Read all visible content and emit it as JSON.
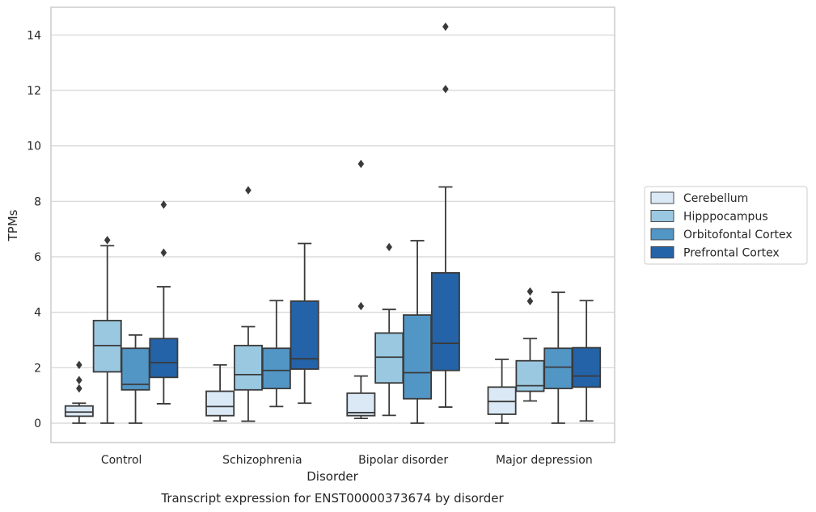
{
  "chart_data": {
    "type": "box",
    "title": "",
    "caption": "Transcript expression for ENST00000373674 by disorder",
    "xlabel": "Disorder",
    "ylabel": "TPMs",
    "categories": [
      "Control",
      "Schizophrenia",
      "Bipolar disorder",
      "Major depression"
    ],
    "yticks": [
      0,
      2,
      4,
      6,
      8,
      10,
      12,
      14
    ],
    "ylim": [
      -0.7,
      15.0
    ],
    "grid": "horizontal",
    "legend_position": "right",
    "series": [
      {
        "name": "Cerebellum",
        "color": "#dbe9f6",
        "boxes": [
          {
            "whislo": 0.0,
            "q1": 0.25,
            "med": 0.4,
            "q3": 0.62,
            "whishi": 0.72,
            "fliers": [
              1.25,
              1.55,
              2.1
            ]
          },
          {
            "whislo": 0.08,
            "q1": 0.27,
            "med": 0.6,
            "q3": 1.15,
            "whishi": 2.1,
            "fliers": []
          },
          {
            "whislo": 0.17,
            "q1": 0.27,
            "med": 0.38,
            "q3": 1.08,
            "whishi": 1.7,
            "fliers": [
              4.22,
              9.35
            ]
          },
          {
            "whislo": 0.0,
            "q1": 0.32,
            "med": 0.78,
            "q3": 1.3,
            "whishi": 2.3,
            "fliers": []
          }
        ]
      },
      {
        "name": "Hipppocampus",
        "color": "#9ac8e1",
        "boxes": [
          {
            "whislo": 0.0,
            "q1": 1.85,
            "med": 2.8,
            "q3": 3.7,
            "whishi": 6.4,
            "fliers": [
              6.6
            ]
          },
          {
            "whislo": 0.07,
            "q1": 1.2,
            "med": 1.75,
            "q3": 2.8,
            "whishi": 3.48,
            "fliers": [
              8.4
            ]
          },
          {
            "whislo": 0.28,
            "q1": 1.45,
            "med": 2.38,
            "q3": 3.25,
            "whishi": 4.1,
            "fliers": [
              6.35
            ]
          },
          {
            "whislo": 0.8,
            "q1": 1.15,
            "med": 1.35,
            "q3": 2.25,
            "whishi": 3.05,
            "fliers": [
              4.4,
              4.75
            ]
          }
        ]
      },
      {
        "name": "Orbitofontal Cortex",
        "color": "#5296c6",
        "boxes": [
          {
            "whislo": 0.0,
            "q1": 1.2,
            "med": 1.4,
            "q3": 2.7,
            "whishi": 3.18,
            "fliers": []
          },
          {
            "whislo": 0.6,
            "q1": 1.25,
            "med": 1.9,
            "q3": 2.7,
            "whishi": 4.42,
            "fliers": []
          },
          {
            "whislo": 0.0,
            "q1": 0.88,
            "med": 1.82,
            "q3": 3.9,
            "whishi": 6.58,
            "fliers": []
          },
          {
            "whislo": 0.0,
            "q1": 1.25,
            "med": 2.02,
            "q3": 2.7,
            "whishi": 4.72,
            "fliers": []
          }
        ]
      },
      {
        "name": "Prefrontal Cortex",
        "color": "#2463a8",
        "boxes": [
          {
            "whislo": 0.7,
            "q1": 1.65,
            "med": 2.18,
            "q3": 3.05,
            "whishi": 4.92,
            "fliers": [
              6.15,
              7.88
            ]
          },
          {
            "whislo": 0.72,
            "q1": 1.95,
            "med": 2.32,
            "q3": 4.4,
            "whishi": 6.48,
            "fliers": []
          },
          {
            "whislo": 0.58,
            "q1": 1.9,
            "med": 2.88,
            "q3": 5.42,
            "whishi": 8.52,
            "fliers": [
              12.05,
              14.3
            ]
          },
          {
            "whislo": 0.08,
            "q1": 1.3,
            "med": 1.7,
            "q3": 2.72,
            "whishi": 4.42,
            "fliers": []
          }
        ]
      }
    ]
  }
}
